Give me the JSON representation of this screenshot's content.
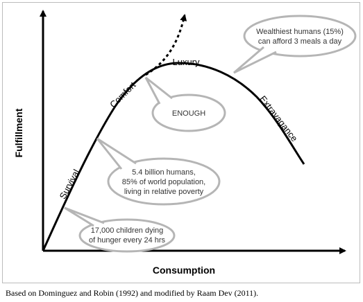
{
  "axes": {
    "y_label": "Fulfillment",
    "x_label": "Consumption"
  },
  "curve_labels": [
    "Survival",
    "Comfort",
    "Luxury",
    "Extravagance"
  ],
  "bubbles": [
    {
      "lines": [
        "Wealthiest humans (15%)",
        "can afford 3 meals a day"
      ]
    },
    {
      "lines": [
        "ENOUGH"
      ]
    },
    {
      "lines": [
        "5.4 billion humans,",
        "85% of world population,",
        "living in relative poverty"
      ]
    },
    {
      "lines": [
        "17,000 children dying",
        "of hunger every 24 hrs"
      ]
    }
  ],
  "caption": "Based on Dominguez and Robin (1992) and modified by Raam Dev (2011)."
}
